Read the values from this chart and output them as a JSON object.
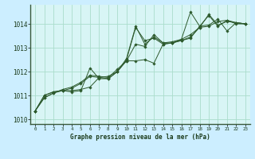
{
  "background_color": "#cceeff",
  "plot_bg_color": "#d8f5f5",
  "grid_color": "#aaddcc",
  "line_color": "#2d5a2d",
  "marker_color": "#2d5a2d",
  "xlabel": "Graphe pression niveau de la mer (hPa)",
  "xlabel_color": "#1a3a1a",
  "tick_color": "#1a3a1a",
  "xlim": [
    -0.5,
    23.5
  ],
  "ylim": [
    1009.8,
    1014.8
  ],
  "yticks": [
    1010,
    1011,
    1012,
    1013,
    1014
  ],
  "xticks": [
    0,
    1,
    2,
    3,
    4,
    5,
    6,
    7,
    8,
    9,
    10,
    11,
    12,
    13,
    14,
    15,
    16,
    17,
    18,
    19,
    20,
    21,
    22,
    23
  ],
  "series": [
    [
      1010.35,
      1010.9,
      1011.1,
      1011.2,
      1011.3,
      1011.5,
      1011.8,
      1011.75,
      1011.7,
      1012.0,
      1012.5,
      1013.85,
      1013.3,
      1013.4,
      1013.15,
      1013.2,
      1013.3,
      1013.4,
      1013.9,
      1014.35,
      1013.9,
      1014.15,
      1014.0,
      1014.0
    ],
    [
      1010.35,
      1010.9,
      1011.1,
      1011.25,
      1011.35,
      1011.55,
      1011.85,
      1011.8,
      1011.75,
      1012.1,
      1012.45,
      1013.15,
      1013.05,
      1013.55,
      1013.2,
      1013.25,
      1013.35,
      1013.55,
      1013.85,
      1014.4,
      1013.95,
      1014.1,
      1014.05,
      1014.0
    ],
    [
      1010.35,
      1011.0,
      1011.15,
      1011.2,
      1011.15,
      1011.2,
      1012.15,
      1011.7,
      1011.7,
      1012.0,
      1012.55,
      1013.9,
      1013.15,
      1013.45,
      1013.2,
      1013.2,
      1013.35,
      1014.5,
      1013.9,
      1013.95,
      1014.2,
      1013.7,
      1014.05,
      1014.0
    ],
    [
      1010.35,
      1011.0,
      1011.15,
      1011.2,
      1011.2,
      1011.25,
      1011.35,
      1011.75,
      1011.8,
      1012.0,
      1012.45,
      1012.45,
      1012.5,
      1012.35,
      1013.15,
      1013.2,
      1013.3,
      1013.45,
      1013.85,
      1013.9,
      1014.1,
      1014.15,
      1014.05,
      1014.0
    ]
  ]
}
